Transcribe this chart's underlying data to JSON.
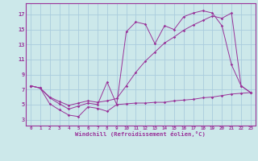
{
  "bg_color": "#cce8ea",
  "grid_color": "#aaccdd",
  "line_color": "#993399",
  "xlabel": "Windchill (Refroidissement éolien,°C)",
  "x_ticks": [
    0,
    1,
    2,
    3,
    4,
    5,
    6,
    7,
    8,
    9,
    10,
    11,
    12,
    13,
    14,
    15,
    16,
    17,
    18,
    19,
    20,
    21,
    22,
    23
  ],
  "y_ticks": [
    3,
    5,
    7,
    9,
    11,
    13,
    15,
    17
  ],
  "xlim": [
    -0.5,
    23.5
  ],
  "ylim": [
    2.2,
    18.5
  ],
  "line1_x": [
    0,
    1,
    2,
    3,
    4,
    5,
    6,
    7,
    8,
    9,
    10,
    11,
    12,
    13,
    14,
    15,
    16,
    17,
    18,
    19,
    20,
    21,
    22,
    23
  ],
  "line1_y": [
    7.5,
    7.2,
    5.1,
    4.3,
    3.6,
    3.4,
    4.7,
    4.5,
    4.1,
    5.0,
    5.1,
    5.2,
    5.2,
    5.3,
    5.3,
    5.5,
    5.6,
    5.7,
    5.9,
    6.0,
    6.2,
    6.4,
    6.5,
    6.6
  ],
  "line2_x": [
    0,
    1,
    2,
    3,
    4,
    5,
    6,
    7,
    8,
    9,
    10,
    11,
    12,
    13,
    14,
    15,
    16,
    17,
    18,
    19,
    20,
    21,
    22,
    23
  ],
  "line2_y": [
    7.5,
    7.2,
    5.9,
    5.1,
    4.4,
    4.8,
    5.2,
    5.0,
    8.0,
    5.0,
    14.7,
    16.0,
    15.7,
    13.1,
    15.5,
    15.0,
    16.7,
    17.2,
    17.5,
    17.2,
    15.5,
    10.3,
    7.5,
    6.6
  ],
  "line3_x": [
    0,
    1,
    2,
    3,
    4,
    5,
    6,
    7,
    8,
    9,
    10,
    11,
    12,
    13,
    14,
    15,
    16,
    17,
    18,
    19,
    20,
    21,
    22,
    23
  ],
  "line3_y": [
    7.5,
    7.2,
    6.0,
    5.4,
    4.9,
    5.2,
    5.5,
    5.3,
    5.5,
    5.8,
    7.5,
    9.3,
    10.8,
    12.0,
    13.2,
    14.0,
    14.9,
    15.6,
    16.2,
    16.8,
    16.5,
    17.2,
    7.5,
    6.6
  ]
}
